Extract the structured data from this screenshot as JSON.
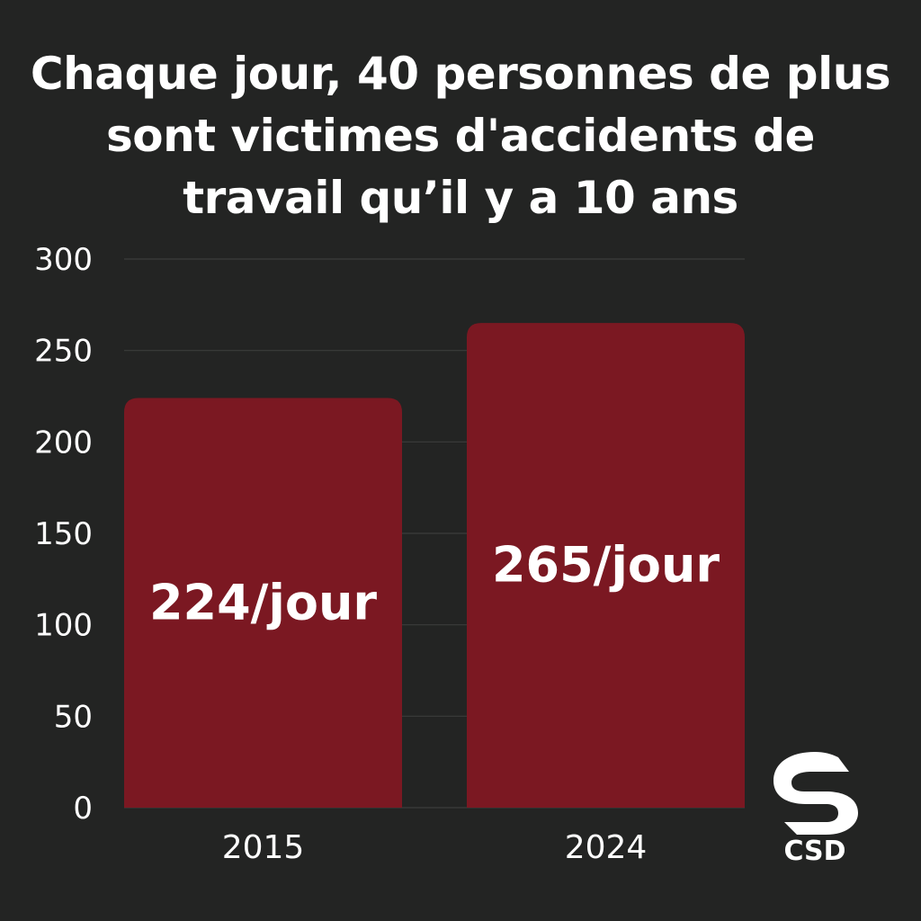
{
  "chart_data": {
    "type": "bar",
    "title": "Chaque jour, 40 personnes de plus sont victimes d'accidents de travail qu’il y a 10 ans",
    "categories": [
      "2015",
      "2024"
    ],
    "values": [
      224,
      265
    ],
    "data_labels": [
      "224/jour",
      "265/jour"
    ],
    "ylim": [
      0,
      300
    ],
    "yticks": [
      0,
      50,
      100,
      150,
      200,
      250,
      300
    ],
    "grid": true,
    "bar_color": "#7b1822",
    "background_color": "#232423",
    "text_color": "#ffffff"
  },
  "logo": {
    "name": "csd-logo",
    "text": "CSD"
  }
}
